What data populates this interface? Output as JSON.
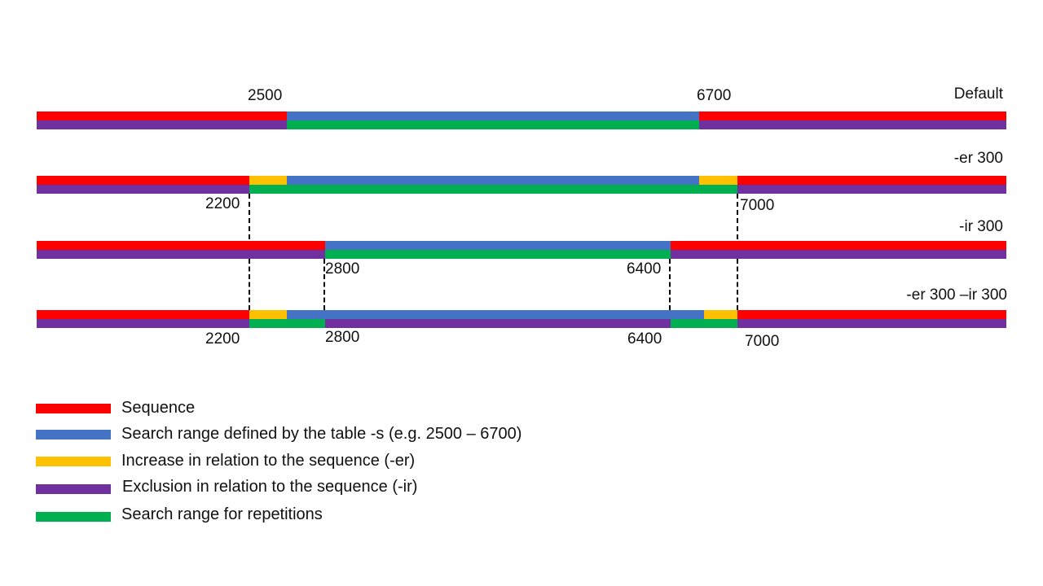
{
  "colors": {
    "sequence": "#FF0000",
    "search_range": "#4472C4",
    "increase": "#FFC000",
    "exclusion": "#7030A0",
    "repetitions": "#00B050",
    "guide": "#000000"
  },
  "rows": {
    "default": {
      "label": "Default",
      "left_value": "2500",
      "right_value": "6700"
    },
    "er": {
      "label": "-er 300",
      "left_value": "2200",
      "right_value": "7000"
    },
    "ir": {
      "label": "-ir 300",
      "left_value": "2800",
      "right_value": "6400"
    },
    "er_ir": {
      "label": "-er 300 –ir 300",
      "outer_left_value": "2200",
      "inner_left_value": "2800",
      "inner_right_value": "6400",
      "outer_right_value": "7000"
    }
  },
  "legend": [
    {
      "label": "Sequence",
      "color": "#FF0000"
    },
    {
      "label": "Search range defined by the table -s (e.g. 2500 – 6700)",
      "color": "#4472C4"
    },
    {
      "label": "Increase in relation to the sequence (-er)",
      "color": "#FFC000"
    },
    {
      "label": "Exclusion in relation to the sequence (-ir)",
      "color": "#7030A0"
    },
    {
      "label": "Search range for repetitions",
      "color": "#00B050"
    }
  ]
}
